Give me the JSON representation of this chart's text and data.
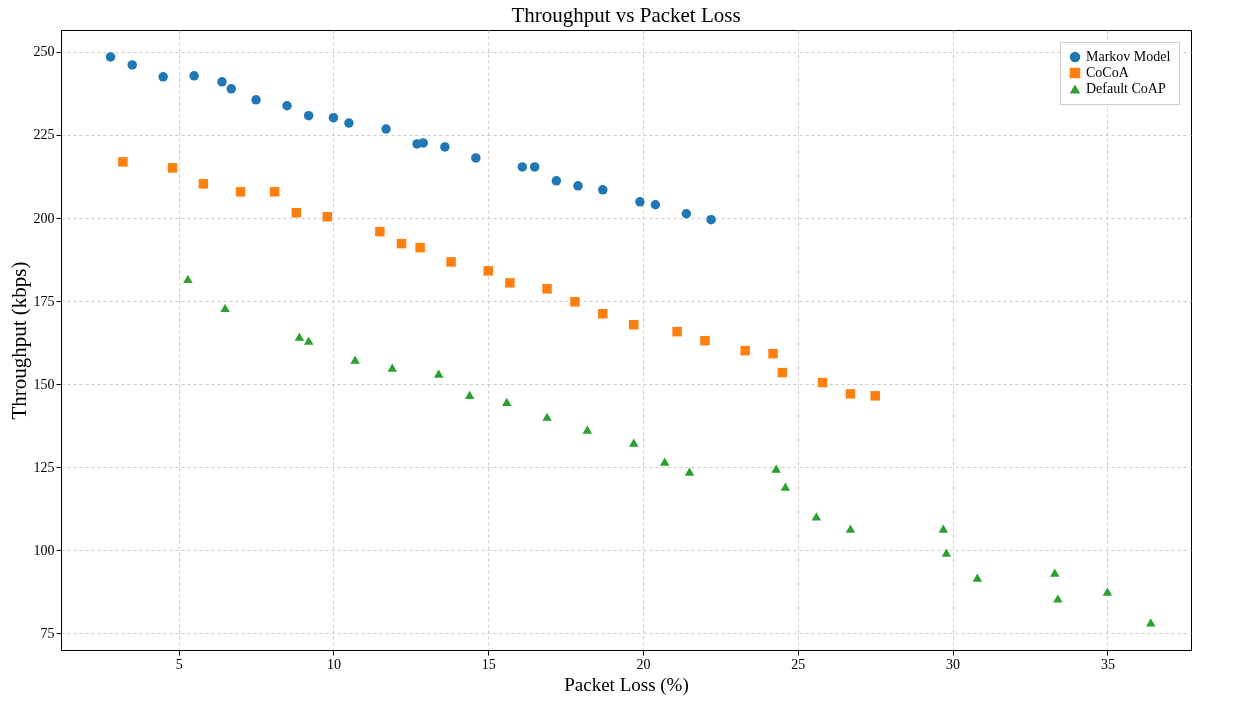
{
  "chart_data": {
    "type": "scatter",
    "title": "Throughput vs Packet Loss",
    "xlabel": "Packet Loss (%)",
    "ylabel": "Throughput (kbps)",
    "xlim": [
      1.2,
      37.7
    ],
    "xticks": [
      5,
      10,
      15,
      20,
      25,
      30,
      35
    ],
    "ylim": [
      70,
      256.6
    ],
    "yticks": [
      75,
      100,
      125,
      150,
      175,
      200,
      225,
      250
    ],
    "grid": true,
    "legend": "top right",
    "series": [
      {
        "name": "Markov Model",
        "color": "#1f77b4",
        "marker": "circle",
        "x": [
          2.8,
          3.5,
          4.5,
          5.5,
          6.4,
          6.7,
          7.5,
          8.5,
          9.2,
          10.0,
          10.5,
          11.7,
          12.7,
          12.9,
          13.6,
          14.6,
          16.1,
          16.5,
          17.2,
          17.9,
          18.7,
          19.9,
          20.4,
          21.4,
          22.2
        ],
        "values": [
          248.5,
          246.1,
          242.5,
          242.8,
          241.0,
          238.9,
          235.6,
          233.8,
          230.8,
          230.2,
          228.6,
          226.8,
          222.3,
          222.6,
          221.4,
          218.1,
          215.4,
          215.4,
          211.2,
          209.7,
          208.5,
          204.9,
          204.0,
          201.3,
          199.5
        ]
      },
      {
        "name": "CoCoA",
        "color": "#ff7f0e",
        "marker": "square",
        "x": [
          3.2,
          4.8,
          5.8,
          7.0,
          8.1,
          8.8,
          9.8,
          11.5,
          12.2,
          12.8,
          13.8,
          15.0,
          15.7,
          16.9,
          17.8,
          18.7,
          19.7,
          21.1,
          22.0,
          23.3,
          24.2,
          24.5,
          25.8,
          26.7,
          27.5
        ],
        "values": [
          216.9,
          215.1,
          210.3,
          207.9,
          207.9,
          201.6,
          200.4,
          195.9,
          192.3,
          191.1,
          186.8,
          184.1,
          180.5,
          178.7,
          174.8,
          171.2,
          167.9,
          165.8,
          163.1,
          160.1,
          159.2,
          153.5,
          150.5,
          147.1,
          146.5
        ]
      },
      {
        "name": "Default CoAP",
        "color": "#2ca02c",
        "marker": "triangle",
        "x": [
          5.3,
          6.5,
          8.9,
          9.2,
          10.7,
          11.9,
          13.4,
          14.4,
          15.6,
          16.9,
          18.2,
          19.7,
          20.7,
          21.5,
          24.3,
          24.6,
          25.6,
          26.7,
          29.7,
          29.8,
          30.8,
          33.3,
          33.4,
          35.0,
          36.4
        ],
        "values": [
          181.7,
          173.0,
          164.3,
          163.1,
          157.4,
          155.0,
          153.2,
          146.8,
          144.7,
          140.2,
          136.3,
          132.4,
          126.7,
          123.7,
          124.6,
          119.2,
          110.2,
          106.5,
          106.5,
          99.3,
          91.8,
          93.3,
          85.5,
          87.6,
          78.3
        ]
      }
    ]
  }
}
